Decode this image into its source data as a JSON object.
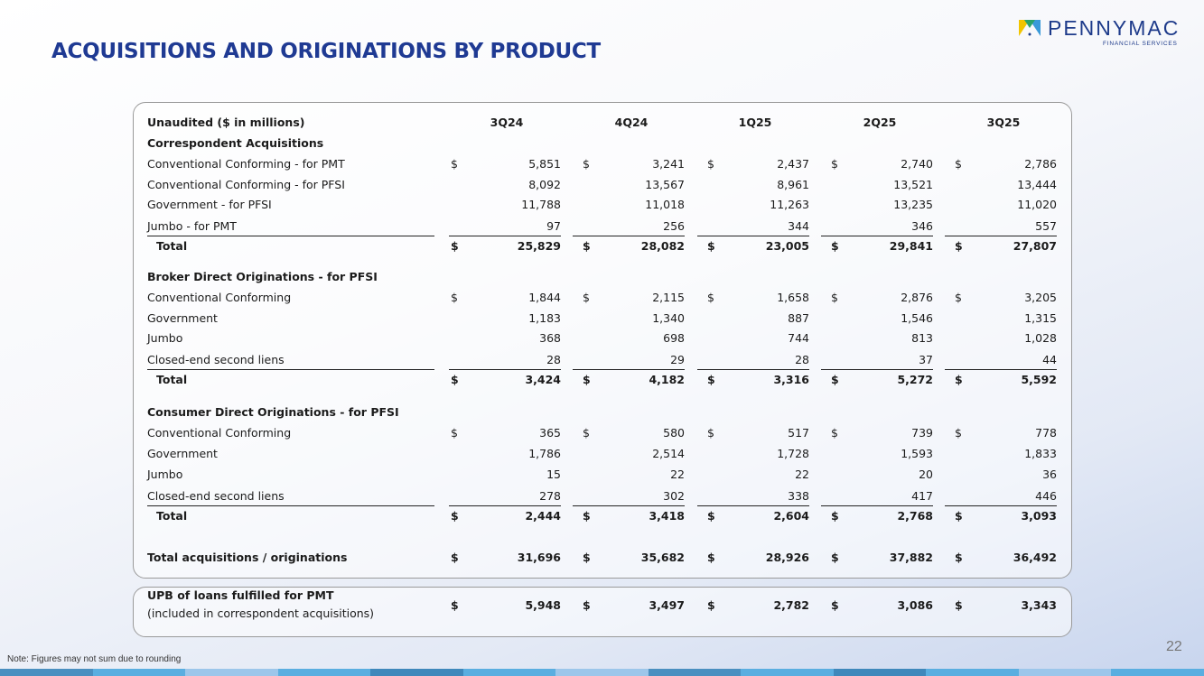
{
  "title": "ACQUISITIONS AND ORIGINATIONS BY PRODUCT",
  "logo": {
    "word": "PENNYMAC",
    "sub": "FINANCIAL SERVICES",
    "colors": [
      "#f2c500",
      "#3a9ad9",
      "#2aa36b",
      "#1d3a8a"
    ]
  },
  "table": {
    "header_label": "Unaudited ($ in millions)",
    "columns": [
      "3Q24",
      "4Q24",
      "1Q25",
      "2Q25",
      "3Q25"
    ],
    "sections": [
      {
        "title": "Correspondent Acquisitions",
        "rows": [
          {
            "label": "Conventional Conforming - for PMT",
            "values": [
              "5,851",
              "3,241",
              "2,437",
              "2,740",
              "2,786"
            ],
            "dollar": true
          },
          {
            "label": "Conventional Conforming - for PFSI",
            "values": [
              "8,092",
              "13,567",
              "8,961",
              "13,521",
              "13,444"
            ]
          },
          {
            "label": "Government - for PFSI",
            "values": [
              "11,788",
              "11,018",
              "11,263",
              "13,235",
              "11,020"
            ]
          },
          {
            "label": "Jumbo - for PMT",
            "values": [
              "97",
              "256",
              "344",
              "346",
              "557"
            ]
          }
        ],
        "total": {
          "label": "Total",
          "values": [
            "25,829",
            "28,082",
            "23,005",
            "29,841",
            "27,807"
          ]
        }
      },
      {
        "title": "Broker Direct Originations - for PFSI",
        "rows": [
          {
            "label": "Conventional Conforming",
            "values": [
              "1,844",
              "2,115",
              "1,658",
              "2,876",
              "3,205"
            ],
            "dollar": true
          },
          {
            "label": "Government",
            "values": [
              "1,183",
              "1,340",
              "887",
              "1,546",
              "1,315"
            ]
          },
          {
            "label": "Jumbo",
            "values": [
              "368",
              "698",
              "744",
              "813",
              "1,028"
            ]
          },
          {
            "label": "Closed-end second liens",
            "values": [
              "28",
              "29",
              "28",
              "37",
              "44"
            ]
          }
        ],
        "total": {
          "label": "Total",
          "values": [
            "3,424",
            "4,182",
            "3,316",
            "5,272",
            "5,592"
          ]
        }
      },
      {
        "title": "Consumer Direct Originations - for PFSI",
        "rows": [
          {
            "label": "Conventional Conforming",
            "values": [
              "365",
              "580",
              "517",
              "739",
              "778"
            ],
            "dollar": true
          },
          {
            "label": "Government",
            "values": [
              "1,786",
              "2,514",
              "1,728",
              "1,593",
              "1,833"
            ]
          },
          {
            "label": "Jumbo",
            "values": [
              "15",
              "22",
              "22",
              "20",
              "36"
            ]
          },
          {
            "label": "Closed-end second liens",
            "values": [
              "278",
              "302",
              "338",
              "417",
              "446"
            ]
          }
        ],
        "total": {
          "label": "Total",
          "values": [
            "2,444",
            "3,418",
            "2,604",
            "2,768",
            "3,093"
          ]
        }
      }
    ],
    "grand_total": {
      "label": "Total acquisitions / originations",
      "values": [
        "31,696",
        "35,682",
        "28,926",
        "37,882",
        "36,492"
      ]
    },
    "currency_symbol": "$"
  },
  "upb": {
    "label_line1": "UPB of loans fulfilled for PMT",
    "label_line2": "(included in correspondent acquisitions)",
    "values": [
      "5,948",
      "3,497",
      "2,782",
      "3,086",
      "3,343"
    ]
  },
  "note": "Note: Figures may not sum due to rounding",
  "page_number": "22",
  "strip_colors": [
    "#4a8fc0",
    "#5aaee0",
    "#9cc6ea",
    "#5aaee0",
    "#3f88bb",
    "#5aaee0",
    "#9cc6ea",
    "#4a8fc0",
    "#5aaee0",
    "#3f88bb",
    "#5aaee0",
    "#9cc6ea",
    "#5aaee0"
  ]
}
